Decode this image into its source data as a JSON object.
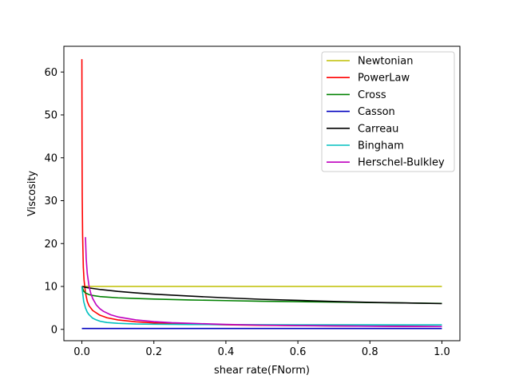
{
  "chart_data": {
    "type": "line",
    "title": "",
    "xlabel": "shear rate(FNorm)",
    "ylabel": "Viscosity",
    "xlim": [
      -0.05,
      1.05
    ],
    "ylim": [
      -2.65,
      66.0
    ],
    "xticks": [
      0.0,
      0.2,
      0.4,
      0.6,
      0.8,
      1.0
    ],
    "xtick_labels": [
      "0.0",
      "0.2",
      "0.4",
      "0.6",
      "0.8",
      "1.0"
    ],
    "yticks": [
      0,
      10,
      20,
      30,
      40,
      50,
      60
    ],
    "ytick_labels": [
      "0",
      "10",
      "20",
      "30",
      "40",
      "50",
      "60"
    ],
    "grid": false,
    "legend_position": "top-right",
    "series": [
      {
        "name": "Newtonian",
        "color": "#bfbf00",
        "x": [
          0.0,
          1.0
        ],
        "y": [
          10.0,
          10.0
        ]
      },
      {
        "name": "PowerLaw",
        "color": "#ff0000",
        "x": [
          0.0,
          0.0005,
          0.001,
          0.002,
          0.004,
          0.006,
          0.01,
          0.015,
          0.02,
          0.03,
          0.05,
          0.07,
          0.1,
          0.15,
          0.2,
          0.3,
          0.4,
          0.5,
          0.6,
          0.7,
          0.8,
          0.9,
          1.0
        ],
        "y": [
          63.0,
          42.0,
          31.0,
          22.0,
          14.5,
          11.5,
          8.5,
          6.5,
          5.5,
          4.4,
          3.3,
          2.7,
          2.2,
          1.75,
          1.5,
          1.2,
          1.05,
          0.95,
          0.87,
          0.8,
          0.75,
          0.7,
          0.65
        ]
      },
      {
        "name": "Cross",
        "color": "#008000",
        "x": [
          0.0,
          0.005,
          0.01,
          0.02,
          0.03,
          0.05,
          0.1,
          0.15,
          0.2,
          0.3,
          0.4,
          0.5,
          0.6,
          0.7,
          0.8,
          0.9,
          1.0
        ],
        "y": [
          10.0,
          8.9,
          8.5,
          8.1,
          7.9,
          7.65,
          7.35,
          7.2,
          7.05,
          6.85,
          6.7,
          6.55,
          6.45,
          6.35,
          6.25,
          6.15,
          6.05
        ]
      },
      {
        "name": "Casson",
        "color": "#0000bf",
        "x": [
          0.0,
          1.0
        ],
        "y": [
          0.2,
          0.2
        ]
      },
      {
        "name": "Carreau",
        "color": "#000000",
        "x": [
          0.0,
          0.01,
          0.02,
          0.05,
          0.1,
          0.15,
          0.2,
          0.3,
          0.4,
          0.5,
          0.6,
          0.7,
          0.8,
          0.9,
          1.0
        ],
        "y": [
          10.0,
          9.8,
          9.65,
          9.3,
          8.85,
          8.5,
          8.2,
          7.75,
          7.35,
          7.0,
          6.75,
          6.5,
          6.3,
          6.15,
          6.0
        ]
      },
      {
        "name": "Bingham",
        "color": "#00bfbf",
        "x": [
          0.0,
          0.005,
          0.01,
          0.015,
          0.02,
          0.03,
          0.04,
          0.05,
          0.07,
          0.1,
          0.15,
          0.2,
          0.3,
          0.4,
          0.5,
          0.6,
          0.8,
          1.0
        ],
        "y": [
          10.0,
          6.5,
          5.0,
          4.0,
          3.4,
          2.6,
          2.2,
          1.9,
          1.6,
          1.4,
          1.25,
          1.2,
          1.13,
          1.1,
          1.08,
          1.07,
          1.05,
          1.04
        ]
      },
      {
        "name": "Herschel-Bulkley",
        "color": "#bf00bf",
        "x": [
          0.01,
          0.012,
          0.015,
          0.02,
          0.025,
          0.03,
          0.04,
          0.05,
          0.06,
          0.08,
          0.1,
          0.15,
          0.2,
          0.25,
          0.3,
          0.4,
          0.5,
          0.6,
          0.7,
          0.8,
          0.9,
          1.0
        ],
        "y": [
          21.5,
          16.5,
          13.0,
          10.0,
          8.3,
          7.2,
          5.7,
          4.8,
          4.2,
          3.4,
          2.9,
          2.2,
          1.8,
          1.55,
          1.4,
          1.15,
          0.98,
          0.88,
          0.8,
          0.74,
          0.69,
          0.65
        ]
      }
    ]
  }
}
